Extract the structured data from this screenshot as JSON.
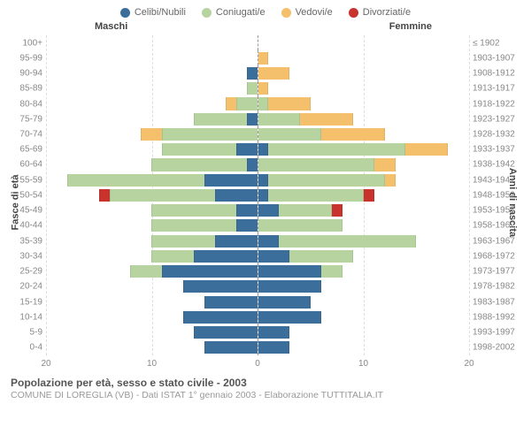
{
  "legend": [
    {
      "label": "Celibi/Nubili",
      "color": "#3b6e9a"
    },
    {
      "label": "Coniugati/e",
      "color": "#b7d4a0"
    },
    {
      "label": "Vedovi/e",
      "color": "#f4c06b"
    },
    {
      "label": "Divorziati/e",
      "color": "#c9332e"
    }
  ],
  "header_left": "Maschi",
  "header_right": "Femmine",
  "y_title_left": "Fasce di età",
  "y_title_right": "Anni di nascita",
  "x_max": 20,
  "x_ticks": [
    20,
    10,
    0,
    10,
    20
  ],
  "rows": [
    {
      "age": "100+",
      "birth": "≤ 1902",
      "m": [
        0,
        0,
        0,
        0
      ],
      "f": [
        0,
        0,
        0,
        0
      ]
    },
    {
      "age": "95-99",
      "birth": "1903-1907",
      "m": [
        0,
        0,
        0,
        0
      ],
      "f": [
        0,
        0,
        1,
        0
      ]
    },
    {
      "age": "90-94",
      "birth": "1908-1912",
      "m": [
        1,
        0,
        0,
        0
      ],
      "f": [
        0,
        0,
        3,
        0
      ]
    },
    {
      "age": "85-89",
      "birth": "1913-1917",
      "m": [
        0,
        1,
        0,
        0
      ],
      "f": [
        0,
        0,
        1,
        0
      ]
    },
    {
      "age": "80-84",
      "birth": "1918-1922",
      "m": [
        0,
        2,
        1,
        0
      ],
      "f": [
        0,
        1,
        4,
        0
      ]
    },
    {
      "age": "75-79",
      "birth": "1923-1927",
      "m": [
        1,
        5,
        0,
        0
      ],
      "f": [
        0,
        4,
        5,
        0
      ]
    },
    {
      "age": "70-74",
      "birth": "1928-1932",
      "m": [
        0,
        9,
        2,
        0
      ],
      "f": [
        0,
        6,
        6,
        0
      ]
    },
    {
      "age": "65-69",
      "birth": "1933-1937",
      "m": [
        2,
        7,
        0,
        0
      ],
      "f": [
        1,
        13,
        4,
        0
      ]
    },
    {
      "age": "60-64",
      "birth": "1938-1942",
      "m": [
        1,
        9,
        0,
        0
      ],
      "f": [
        0,
        11,
        2,
        0
      ]
    },
    {
      "age": "55-59",
      "birth": "1943-1947",
      "m": [
        5,
        13,
        0,
        0
      ],
      "f": [
        1,
        11,
        1,
        0
      ]
    },
    {
      "age": "50-54",
      "birth": "1948-1952",
      "m": [
        4,
        10,
        0,
        1
      ],
      "f": [
        1,
        9,
        0,
        1
      ]
    },
    {
      "age": "45-49",
      "birth": "1953-1957",
      "m": [
        2,
        8,
        0,
        0
      ],
      "f": [
        2,
        5,
        0,
        1
      ]
    },
    {
      "age": "40-44",
      "birth": "1958-1962",
      "m": [
        2,
        8,
        0,
        0
      ],
      "f": [
        0,
        8,
        0,
        0
      ]
    },
    {
      "age": "35-39",
      "birth": "1963-1967",
      "m": [
        4,
        6,
        0,
        0
      ],
      "f": [
        2,
        13,
        0,
        0
      ]
    },
    {
      "age": "30-34",
      "birth": "1968-1972",
      "m": [
        6,
        4,
        0,
        0
      ],
      "f": [
        3,
        6,
        0,
        0
      ]
    },
    {
      "age": "25-29",
      "birth": "1973-1977",
      "m": [
        9,
        3,
        0,
        0
      ],
      "f": [
        6,
        2,
        0,
        0
      ]
    },
    {
      "age": "20-24",
      "birth": "1978-1982",
      "m": [
        7,
        0,
        0,
        0
      ],
      "f": [
        6,
        0,
        0,
        0
      ]
    },
    {
      "age": "15-19",
      "birth": "1983-1987",
      "m": [
        5,
        0,
        0,
        0
      ],
      "f": [
        5,
        0,
        0,
        0
      ]
    },
    {
      "age": "10-14",
      "birth": "1988-1992",
      "m": [
        7,
        0,
        0,
        0
      ],
      "f": [
        6,
        0,
        0,
        0
      ]
    },
    {
      "age": "5-9",
      "birth": "1993-1997",
      "m": [
        6,
        0,
        0,
        0
      ],
      "f": [
        3,
        0,
        0,
        0
      ]
    },
    {
      "age": "0-4",
      "birth": "1998-2002",
      "m": [
        5,
        0,
        0,
        0
      ],
      "f": [
        3,
        0,
        0,
        0
      ]
    }
  ],
  "footer_title": "Popolazione per età, sesso e stato civile - 2003",
  "footer_sub": "COMUNE DI LOREGLIA (VB) - Dati ISTAT 1° gennaio 2003 - Elaborazione TUTTITALIA.IT"
}
